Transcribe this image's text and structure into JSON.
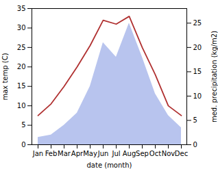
{
  "chart_data": {
    "type": "line",
    "xlabel": "date (month)",
    "ylabel": "max temp (C)",
    "y2label": "med. precipitation (kg/m2)",
    "categories": [
      "Jan",
      "Feb",
      "Mar",
      "Apr",
      "May",
      "Jun",
      "Jul",
      "Aug",
      "Sep",
      "Oct",
      "Nov",
      "Dec"
    ],
    "series": [
      {
        "type": "area",
        "axis": "y2",
        "color": "#b8c4ee",
        "values": [
          1.5,
          2.0,
          4.0,
          6.5,
          12.0,
          21.0,
          18.0,
          25.0,
          18.0,
          10.5,
          6.0,
          3.5
        ]
      },
      {
        "type": "line",
        "color": "#b03030",
        "values": [
          7.5,
          10.5,
          15.0,
          20.0,
          25.5,
          32.0,
          31.0,
          33.0,
          25.0,
          18.0,
          10.0,
          7.5
        ]
      }
    ],
    "ylim": [
      0,
      35
    ],
    "yticks": [
      0,
      5,
      10,
      15,
      20,
      25,
      30,
      35
    ],
    "y2lim": [
      0,
      28
    ],
    "y2ticks": [
      0,
      5,
      10,
      15,
      20,
      25
    ]
  }
}
